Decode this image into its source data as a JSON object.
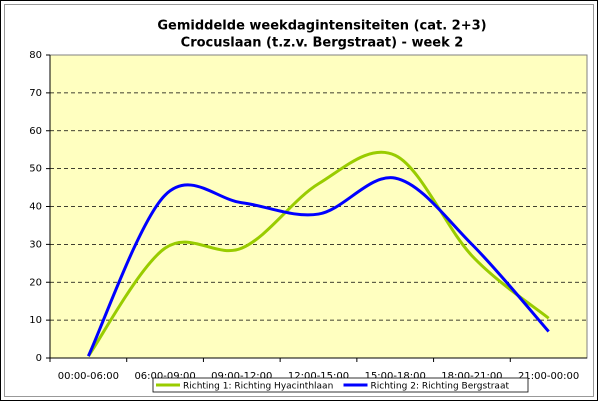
{
  "chart_data": {
    "type": "line",
    "title": [
      "Gemiddelde weekdagintensiteiten (cat. 2+3)",
      "Crocuslaan (t.z.v. Bergstraat) - week 2"
    ],
    "categories": [
      "00:00-06:00",
      "06:00-09:00",
      "09:00-12:00",
      "12:00-15:00",
      "15:00-18:00",
      "18:00-21:00",
      "21:00-00:00"
    ],
    "series": [
      {
        "name": "Richting 1: Richting Hyacinthlaan",
        "color": "#99cc00",
        "values": [
          0.5,
          29,
          29,
          46,
          53.5,
          27,
          10.5
        ]
      },
      {
        "name": "Richting 2: Richting Bergstraat",
        "color": "#0000ff",
        "values": [
          0.5,
          43,
          41,
          38,
          47.5,
          30,
          7
        ]
      }
    ],
    "ylim": [
      0,
      80
    ],
    "yticks": [
      0,
      10,
      20,
      30,
      40,
      50,
      60,
      70,
      80
    ],
    "grid": true,
    "smooth": true,
    "legend": "bottom"
  }
}
